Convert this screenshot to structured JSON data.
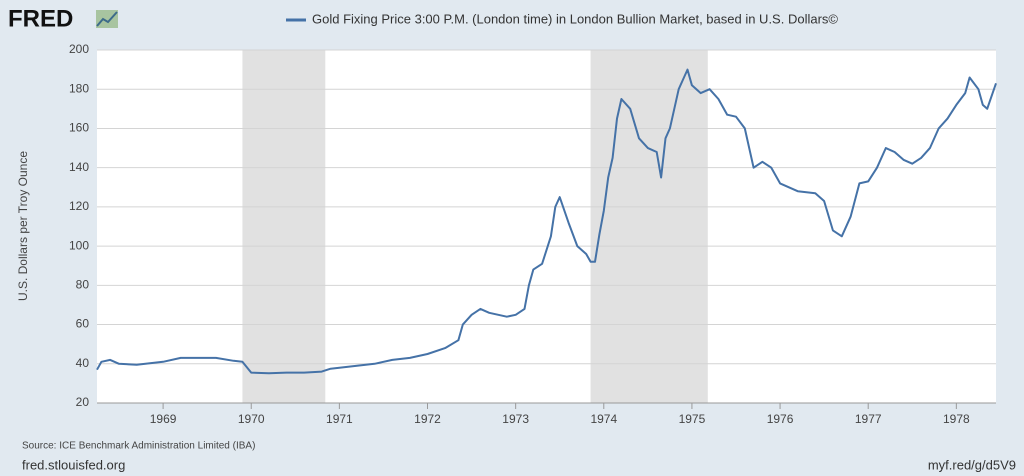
{
  "brand": "FRED",
  "chart_data": {
    "type": "line",
    "title": "Gold Fixing Price 3:00 P.M. (London time) in London Bullion Market, based in U.S. Dollars©",
    "y_label": "U.S. Dollars per Troy Ounce",
    "source": "Source: ICE Benchmark Administration Limited (IBA)",
    "site": "fred.stlouisfed.org",
    "short_link": "myf.red/g/d5V9",
    "grid": true,
    "xlim": [
      1968.25,
      1978.45
    ],
    "xticks": [
      1969,
      1970,
      1971,
      1972,
      1973,
      1974,
      1975,
      1976,
      1977,
      1978
    ],
    "ylim": [
      20,
      200
    ],
    "yticks": [
      20,
      40,
      60,
      80,
      100,
      120,
      140,
      160,
      180,
      200
    ],
    "recessions": [
      [
        1969.9,
        1970.84
      ],
      [
        1973.85,
        1975.18
      ]
    ],
    "recession_color": "#e1e1e1",
    "series": [
      {
        "name": "Gold Fixing Price 3:00 P.M. (London time) in London Bullion Market, based in U.S. Dollars©",
        "color": "#4572a7",
        "x": [
          1968.25,
          1968.3,
          1968.4,
          1968.5,
          1968.7,
          1968.9,
          1969.0,
          1969.2,
          1969.4,
          1969.6,
          1969.8,
          1969.9,
          1970.0,
          1970.2,
          1970.4,
          1970.6,
          1970.8,
          1970.9,
          1971.0,
          1971.2,
          1971.4,
          1971.6,
          1971.8,
          1972.0,
          1972.2,
          1972.35,
          1972.4,
          1972.5,
          1972.6,
          1972.7,
          1972.9,
          1973.0,
          1973.1,
          1973.15,
          1973.2,
          1973.3,
          1973.4,
          1973.45,
          1973.5,
          1973.6,
          1973.7,
          1973.8,
          1973.85,
          1973.9,
          1973.95,
          1974.0,
          1974.05,
          1974.1,
          1974.15,
          1974.2,
          1974.3,
          1974.4,
          1974.5,
          1974.6,
          1974.65,
          1974.7,
          1974.75,
          1974.85,
          1974.9,
          1974.95,
          1975.0,
          1975.1,
          1975.2,
          1975.3,
          1975.4,
          1975.5,
          1975.6,
          1975.7,
          1975.8,
          1975.9,
          1976.0,
          1976.1,
          1976.2,
          1976.4,
          1976.5,
          1976.6,
          1976.7,
          1976.8,
          1976.9,
          1977.0,
          1977.1,
          1977.2,
          1977.3,
          1977.4,
          1977.5,
          1977.6,
          1977.7,
          1977.8,
          1977.9,
          1978.0,
          1978.1,
          1978.15,
          1978.25,
          1978.3,
          1978.35,
          1978.45
        ],
        "values": [
          37,
          41,
          42,
          40,
          39.5,
          40.5,
          41,
          43,
          43,
          43,
          41.5,
          41,
          35.5,
          35.2,
          35.5,
          35.5,
          36,
          37.5,
          38,
          39,
          40,
          42,
          43,
          45,
          48,
          52,
          60,
          65,
          68,
          66,
          64,
          65,
          68,
          80,
          88,
          91,
          105,
          120,
          125,
          112,
          100,
          96,
          92,
          92,
          106,
          118,
          135,
          145,
          165,
          175,
          170,
          155,
          150,
          148,
          135,
          155,
          160,
          180,
          185,
          190,
          182,
          178,
          180,
          175,
          167,
          166,
          160,
          140,
          143,
          140,
          132,
          130,
          128,
          127,
          123,
          108,
          105,
          115,
          132,
          133,
          140,
          150,
          148,
          144,
          142,
          145,
          150,
          160,
          165,
          172,
          178,
          186,
          180,
          172,
          170,
          183
        ]
      }
    ]
  }
}
